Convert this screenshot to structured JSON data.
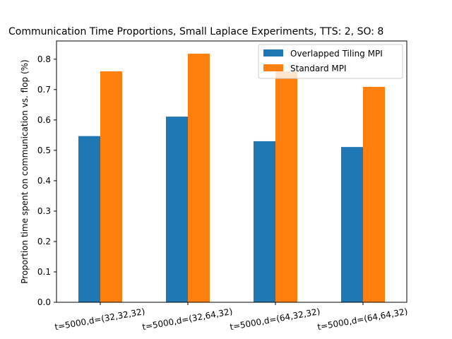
{
  "chart_data": {
    "type": "bar",
    "title": "Communication Time Proportions, Small Laplace Experiments, TTS: 2, SO: 8",
    "xlabel": "",
    "ylabel": "Proportion time spent on communication vs. flop (%)",
    "categories": [
      "t=5000,d=(32,32,32)",
      "t=5000,d=(32,64,32)",
      "t=5000,d=(64,32,32)",
      "t=5000,d=(64,64,32)"
    ],
    "series": [
      {
        "name": "Overlapped Tiling MPI",
        "values": [
          0.547,
          0.611,
          0.53,
          0.511
        ],
        "color": "#1f77b4"
      },
      {
        "name": "Standard MPI",
        "values": [
          0.76,
          0.818,
          0.76,
          0.709
        ],
        "color": "#ff7f0e"
      }
    ],
    "ylim": [
      0,
      0.86
    ],
    "yticks": [
      "0.0",
      "0.1",
      "0.2",
      "0.3",
      "0.4",
      "0.5",
      "0.6",
      "0.7",
      "0.8"
    ],
    "grid": false,
    "legend_position": "top-right"
  }
}
